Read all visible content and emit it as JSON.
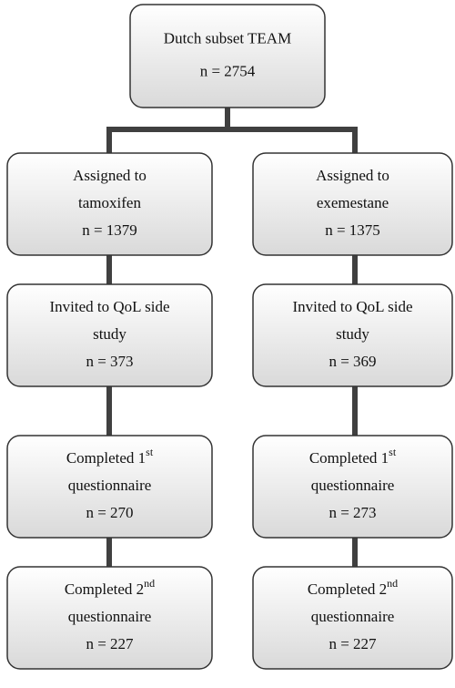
{
  "nodes": [
    {
      "lines": [
        "Dutch subset TEAM",
        "n = 2754"
      ]
    },
    {
      "lines": [
        "Assigned to",
        "tamoxifen",
        "n = 1379"
      ]
    },
    {
      "lines": [
        "Assigned to",
        "exemestane",
        "n = 1375"
      ]
    },
    {
      "lines": [
        "Invited to QoL side",
        "study",
        "n = 373"
      ]
    },
    {
      "lines": [
        "Invited to QoL side",
        "study",
        "n = 369"
      ]
    },
    {
      "lines": [
        "Completed 1",
        "questionnaire",
        "n = 270"
      ],
      "sup": "st"
    },
    {
      "lines": [
        "Completed 1",
        "questionnaire",
        "n = 273"
      ],
      "sup": "st"
    },
    {
      "lines": [
        "Completed 2",
        "questionnaire",
        "n = 227"
      ],
      "sup": "nd"
    },
    {
      "lines": [
        "Completed 2",
        "questionnaire",
        "n = 227"
      ],
      "sup": "nd"
    }
  ]
}
